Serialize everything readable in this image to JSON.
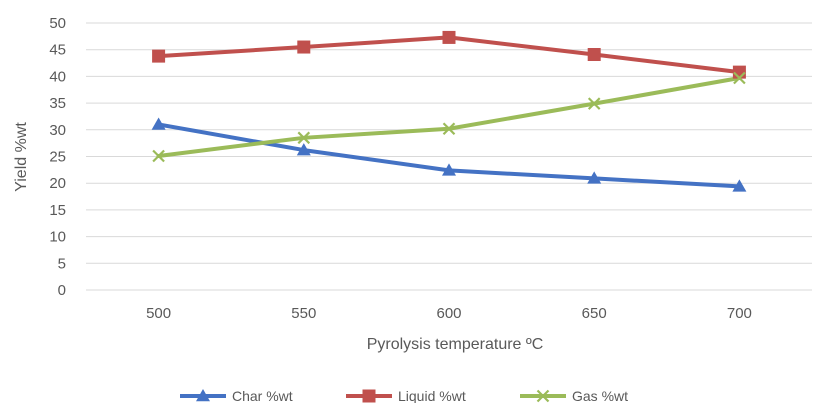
{
  "chart_data": {
    "type": "line",
    "title": "",
    "xlabel": "Pyrolysis temperature ºC",
    "ylabel": "Yield %wt",
    "categories": [
      "500",
      "550",
      "600",
      "650",
      "700"
    ],
    "ylim": [
      0,
      50
    ],
    "y_ticks": [
      0,
      5,
      10,
      15,
      20,
      25,
      30,
      35,
      40,
      45,
      50
    ],
    "grid": "horizontal",
    "legend_position": "bottom",
    "series": [
      {
        "name": "Char %wt",
        "values": [
          31.0,
          26.2,
          22.4,
          20.9,
          19.4
        ],
        "color": "#4472C4",
        "marker": "triangle"
      },
      {
        "name": "Liquid %wt",
        "values": [
          43.8,
          45.5,
          47.3,
          44.1,
          40.8
        ],
        "color": "#C0504D",
        "marker": "square"
      },
      {
        "name": "Gas %wt",
        "values": [
          25.1,
          28.5,
          30.2,
          34.9,
          39.7
        ],
        "color": "#9BBB59",
        "marker": "x"
      }
    ]
  }
}
